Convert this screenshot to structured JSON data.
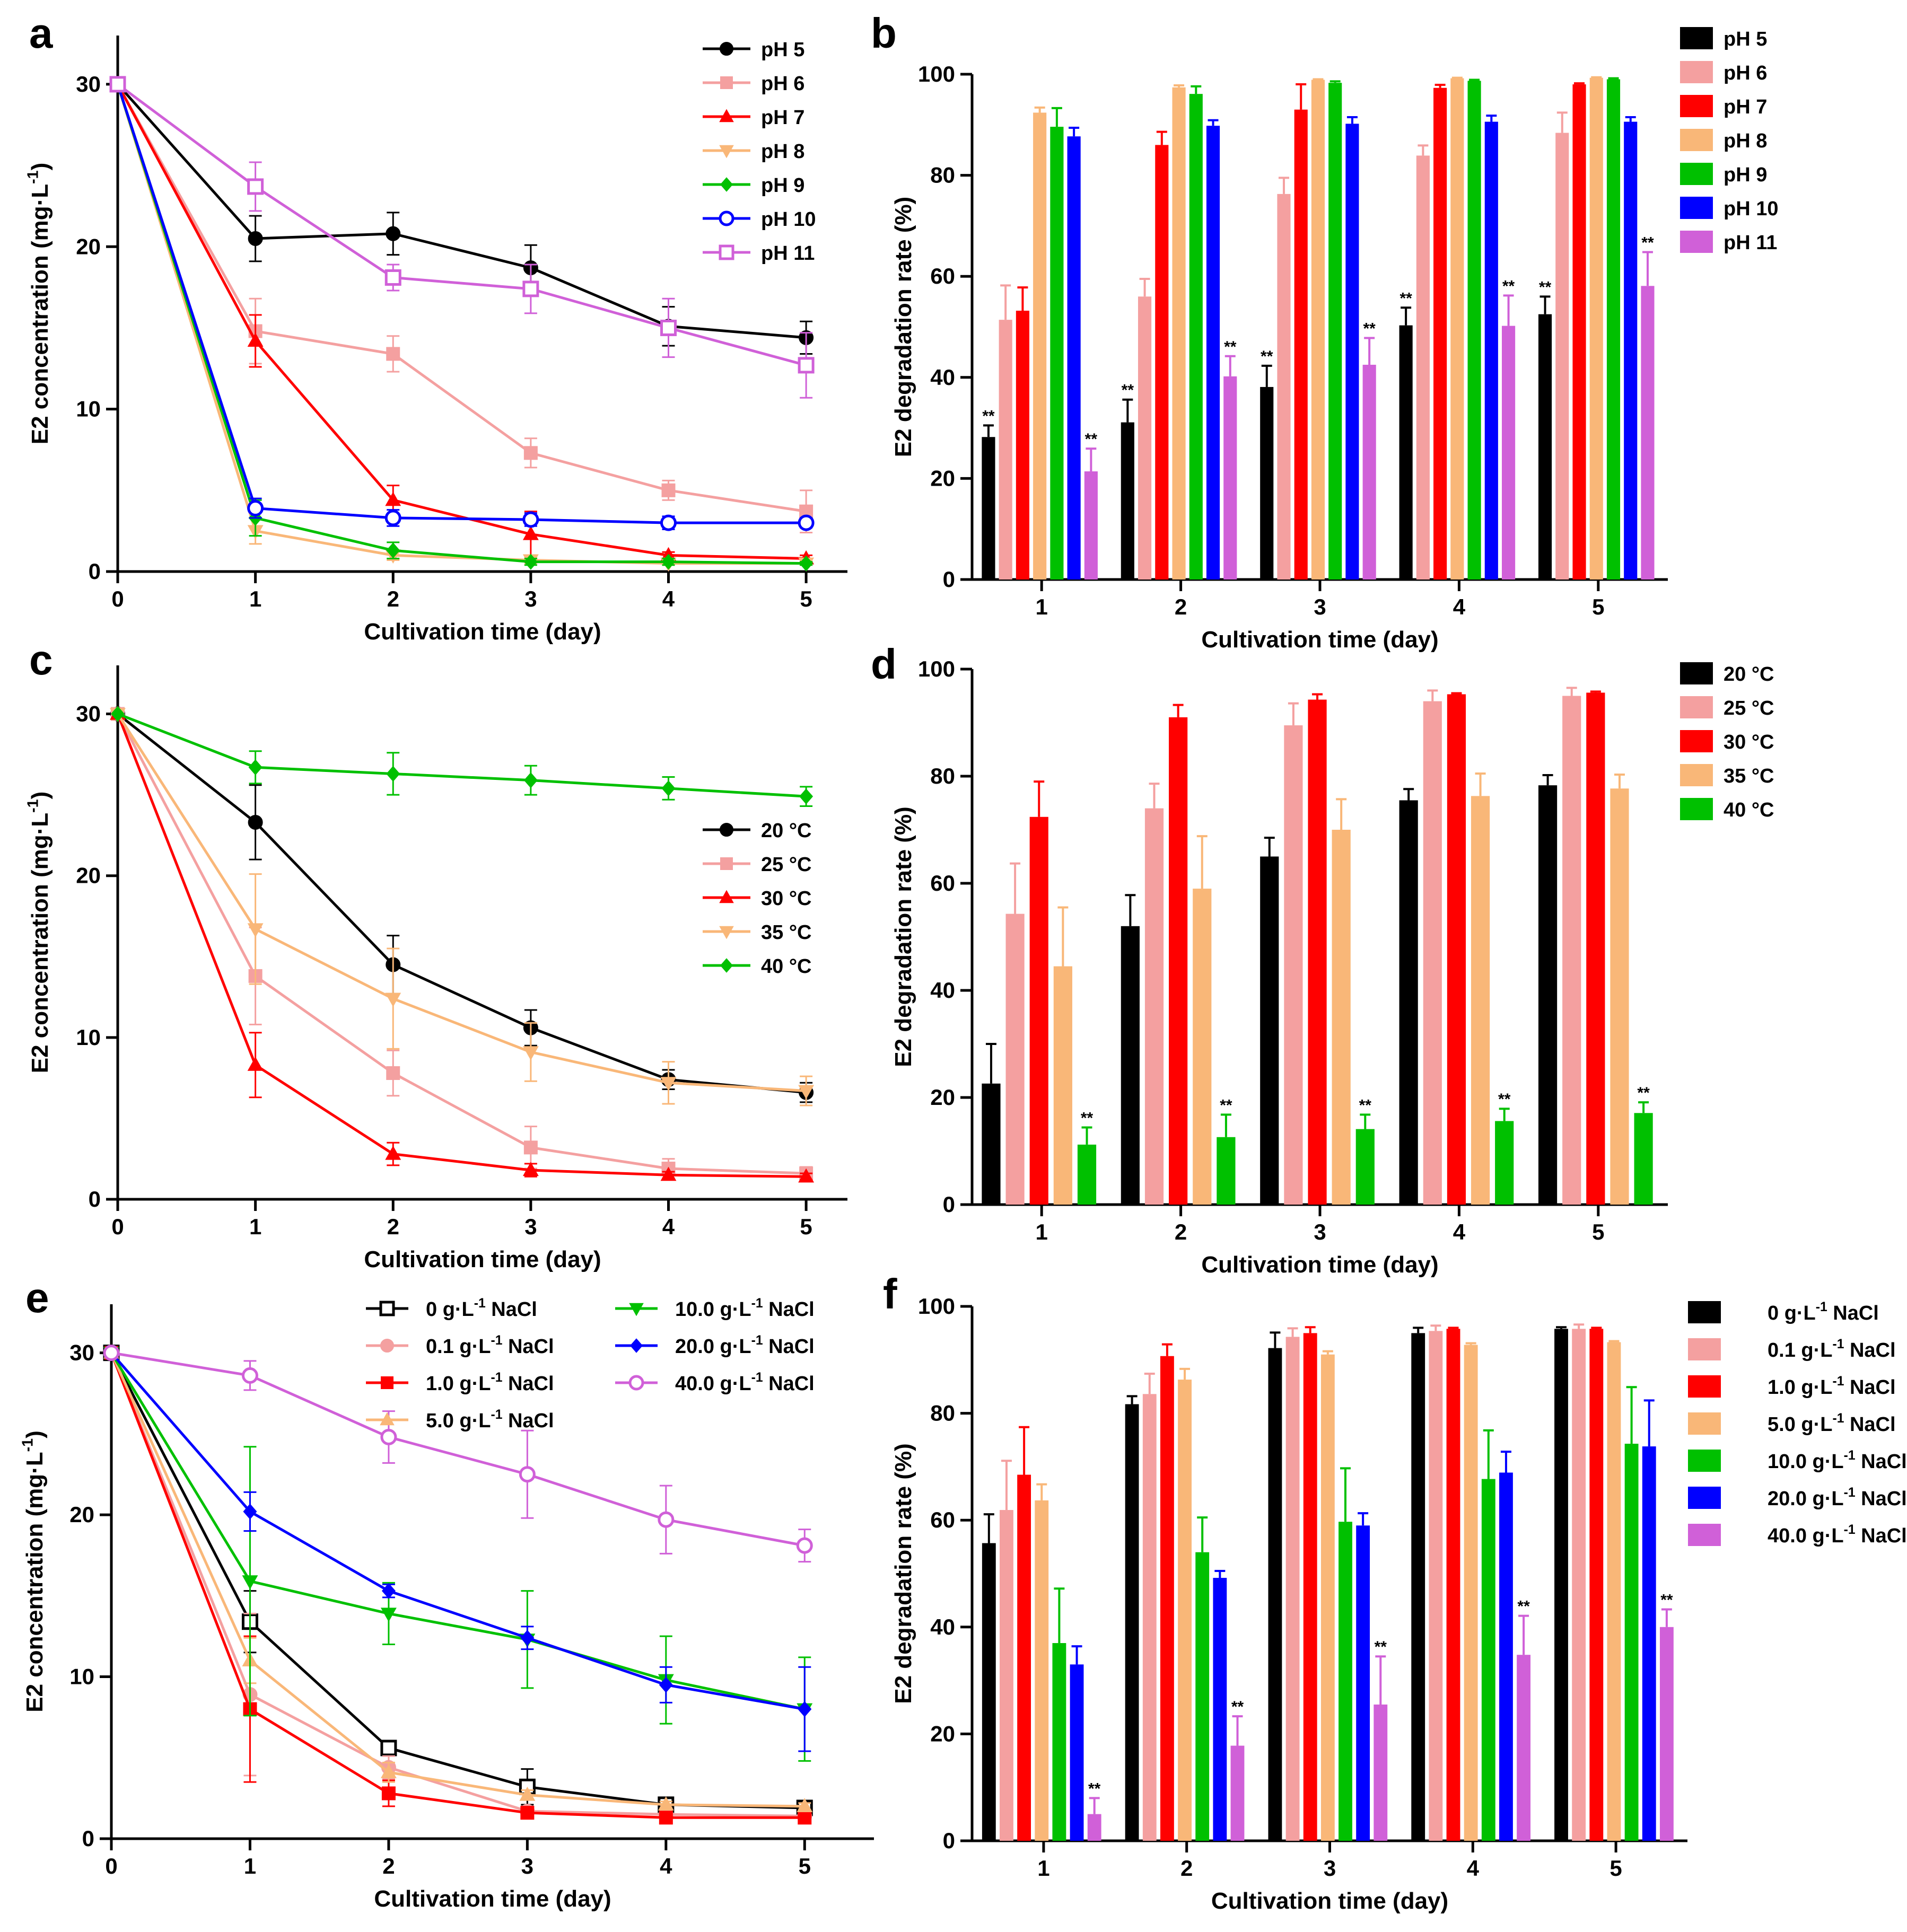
{
  "figure": {
    "colors": {
      "ph5": "#000000",
      "ph6": "#f4a0a0",
      "ph7": "#ff0000",
      "ph8": "#f9b778",
      "ph9": "#00c000",
      "ph10": "#0000ff",
      "ph11": "#d060d8",
      "axis": "#000000"
    }
  },
  "chart_data": [
    {
      "id": "a",
      "panel_label": "a",
      "type": "line",
      "xlabel": "Cultivation time (day)",
      "ylabel": "E2 concentration (mg·L",
      "ylabel_sup": "-1",
      "ylabel_end": ")",
      "xlim": [
        0,
        5.3
      ],
      "ylim": [
        0,
        33
      ],
      "xticks": [
        0,
        1,
        2,
        3,
        4,
        5
      ],
      "yticks": [
        0,
        10,
        20,
        30
      ],
      "x": [
        0,
        1,
        2,
        3,
        4,
        5
      ],
      "legend_position": "top-right",
      "series": [
        {
          "name": "pH 5",
          "color": "#000000",
          "marker": "circle",
          "values": [
            30,
            20.5,
            20.8,
            18.7,
            15.1,
            14.4
          ],
          "errors": [
            0,
            1.4,
            1.3,
            1.4,
            1.2,
            1.0
          ]
        },
        {
          "name": "pH 6",
          "color": "#f4a0a0",
          "marker": "square",
          "values": [
            30,
            14.8,
            13.4,
            7.3,
            5.0,
            3.7
          ],
          "errors": [
            0,
            2.0,
            1.1,
            0.9,
            0.6,
            1.3
          ]
        },
        {
          "name": "pH 7",
          "color": "#ff0000",
          "marker": "triangle-up",
          "values": [
            30,
            14.2,
            4.4,
            2.3,
            1.0,
            0.8
          ],
          "errors": [
            0,
            1.6,
            0.9,
            1.4,
            0.2,
            0.2
          ]
        },
        {
          "name": "pH 8",
          "color": "#f9b778",
          "marker": "triangle-down",
          "values": [
            30,
            2.5,
            1.0,
            0.7,
            0.5,
            0.5
          ],
          "errors": [
            0,
            0.8,
            0.3,
            0.2,
            0.1,
            0.1
          ]
        },
        {
          "name": "pH 9",
          "color": "#00c000",
          "marker": "diamond",
          "values": [
            30,
            3.3,
            1.3,
            0.6,
            0.6,
            0.5
          ],
          "errors": [
            0,
            1.1,
            0.5,
            0.2,
            0.2,
            0.1
          ]
        },
        {
          "name": "pH 10",
          "color": "#0000ff",
          "marker": "circle-open",
          "values": [
            30,
            3.9,
            3.3,
            3.2,
            3.0,
            3.0
          ],
          "errors": [
            0,
            0.6,
            0.5,
            0.4,
            0.4,
            0.3
          ]
        },
        {
          "name": "pH 11",
          "color": "#d060d8",
          "marker": "square-open",
          "values": [
            30,
            23.7,
            18.1,
            17.4,
            15.0,
            12.7
          ],
          "errors": [
            0,
            1.5,
            0.8,
            1.5,
            1.8,
            2.0
          ]
        }
      ]
    },
    {
      "id": "b",
      "panel_label": "b",
      "type": "bar",
      "xlabel": "Cultivation time (day)",
      "ylabel": "E2 degradation rate (%)",
      "ylim": [
        0,
        100
      ],
      "yticks": [
        0,
        20,
        40,
        60,
        80,
        100
      ],
      "categories": [
        "1",
        "2",
        "3",
        "4",
        "5"
      ],
      "legend_position": "top-right",
      "series": [
        {
          "name": "pH 5",
          "color": "#000000",
          "values": [
            28.2,
            31.1,
            38.1,
            50.3,
            52.5
          ],
          "errors": [
            2.3,
            4.5,
            4.2,
            3.5,
            3.5
          ],
          "sig": [
            "**",
            "**",
            "**",
            "**",
            "**"
          ]
        },
        {
          "name": "pH 6",
          "color": "#f4a0a0",
          "values": [
            51.4,
            56.0,
            76.3,
            83.9,
            88.4
          ],
          "errors": [
            6.8,
            3.5,
            3.2,
            2.0,
            4.0
          ],
          "sig": [
            "",
            "",
            "",
            "",
            ""
          ]
        },
        {
          "name": "pH 7",
          "color": "#ff0000",
          "values": [
            53.2,
            86.0,
            93.0,
            97.3,
            98.0
          ],
          "errors": [
            4.6,
            2.6,
            5.0,
            0.6,
            0.2
          ],
          "sig": [
            "",
            "",
            "",
            "",
            ""
          ]
        },
        {
          "name": "pH 8",
          "color": "#f9b778",
          "values": [
            92.4,
            97.4,
            98.9,
            99.2,
            99.3
          ],
          "errors": [
            1.0,
            0.4,
            0.1,
            0.1,
            0.1
          ],
          "sig": [
            "",
            "",
            "",
            "",
            ""
          ]
        },
        {
          "name": "pH 9",
          "color": "#00c000",
          "values": [
            89.6,
            96.1,
            98.3,
            98.7,
            99.0
          ],
          "errors": [
            3.7,
            1.5,
            0.3,
            0.2,
            0.2
          ],
          "sig": [
            "",
            "",
            "",
            "",
            ""
          ]
        },
        {
          "name": "pH 10",
          "color": "#0000ff",
          "values": [
            87.7,
            89.8,
            90.2,
            90.6,
            90.6
          ],
          "errors": [
            1.7,
            1.1,
            1.3,
            1.2,
            0.9
          ],
          "sig": [
            "",
            "",
            "",
            "",
            ""
          ]
        },
        {
          "name": "pH 11",
          "color": "#d060d8",
          "values": [
            21.4,
            40.2,
            42.5,
            50.2,
            58.1
          ],
          "errors": [
            4.5,
            4.0,
            5.3,
            6.0,
            6.7
          ],
          "sig": [
            "**",
            "**",
            "**",
            "**",
            "**"
          ]
        }
      ]
    },
    {
      "id": "c",
      "panel_label": "c",
      "type": "line",
      "xlabel": "Cultivation time (day)",
      "ylabel": "E2 concentration (mg·L",
      "ylabel_sup": "-1",
      "ylabel_end": ")",
      "xlim": [
        0,
        5.3
      ],
      "ylim": [
        0,
        33
      ],
      "xticks": [
        0,
        1,
        2,
        3,
        4,
        5
      ],
      "yticks": [
        0,
        10,
        20,
        30
      ],
      "x": [
        0,
        1,
        2,
        3,
        4,
        5
      ],
      "legend_position": "right-middle",
      "series": [
        {
          "name": "20 °C",
          "color": "#000000",
          "marker": "circle",
          "values": [
            30,
            23.3,
            14.5,
            10.6,
            7.4,
            6.6
          ],
          "errors": [
            0,
            2.3,
            1.8,
            1.1,
            0.6,
            0.6
          ]
        },
        {
          "name": "25 °C",
          "color": "#f4a0a0",
          "marker": "square",
          "values": [
            30,
            13.8,
            7.8,
            3.2,
            1.9,
            1.6
          ],
          "errors": [
            0,
            3.0,
            1.4,
            1.3,
            0.6,
            0.4
          ]
        },
        {
          "name": "30 °C",
          "color": "#ff0000",
          "marker": "triangle-up",
          "values": [
            30,
            8.3,
            2.8,
            1.8,
            1.5,
            1.4
          ],
          "errors": [
            0,
            2.0,
            0.7,
            0.4,
            0.2,
            0.2
          ]
        },
        {
          "name": "35 °C",
          "color": "#f9b778",
          "marker": "triangle-down",
          "values": [
            30,
            16.7,
            12.4,
            9.1,
            7.2,
            6.7
          ],
          "errors": [
            0,
            3.4,
            3.1,
            1.8,
            1.3,
            0.9
          ]
        },
        {
          "name": "40 °C",
          "color": "#00c000",
          "marker": "diamond",
          "values": [
            30,
            26.7,
            26.3,
            25.9,
            25.4,
            24.9
          ],
          "errors": [
            0,
            1.0,
            1.3,
            0.9,
            0.7,
            0.6
          ]
        }
      ]
    },
    {
      "id": "d",
      "panel_label": "d",
      "type": "bar",
      "xlabel": "Cultivation time (day)",
      "ylabel": "E2 degradation rate (%)",
      "ylim": [
        0,
        100
      ],
      "yticks": [
        0,
        20,
        40,
        60,
        80,
        100
      ],
      "categories": [
        "1",
        "2",
        "3",
        "4",
        "5"
      ],
      "legend_position": "top-right",
      "series": [
        {
          "name": "20 °C",
          "color": "#000000",
          "values": [
            22.6,
            52.0,
            65.0,
            75.5,
            78.3
          ],
          "errors": [
            7.4,
            5.8,
            3.5,
            2.1,
            1.9
          ],
          "sig": [
            "",
            "",
            "",
            "",
            ""
          ]
        },
        {
          "name": "25 °C",
          "color": "#f4a0a0",
          "values": [
            54.3,
            74.0,
            89.5,
            94.0,
            95.0
          ],
          "errors": [
            9.4,
            4.6,
            4.1,
            2.0,
            1.5
          ],
          "sig": [
            "",
            "",
            "",
            "",
            ""
          ]
        },
        {
          "name": "30 °C",
          "color": "#ff0000",
          "values": [
            72.4,
            91.0,
            94.3,
            95.3,
            95.6
          ],
          "errors": [
            6.6,
            2.3,
            1.0,
            0.2,
            0.2
          ],
          "sig": [
            "",
            "",
            "",
            "",
            ""
          ]
        },
        {
          "name": "35 °C",
          "color": "#f9b778",
          "values": [
            44.5,
            59.0,
            70.0,
            76.3,
            77.7
          ],
          "errors": [
            11.0,
            9.8,
            5.7,
            4.2,
            2.6
          ],
          "sig": [
            "",
            "",
            "",
            "",
            ""
          ]
        },
        {
          "name": "40 °C",
          "color": "#00c000",
          "values": [
            11.2,
            12.6,
            14.1,
            15.6,
            17.1
          ],
          "errors": [
            3.2,
            4.2,
            2.7,
            2.3,
            2.0
          ],
          "sig": [
            "**",
            "**",
            "**",
            "**",
            "**"
          ]
        }
      ]
    },
    {
      "id": "e",
      "panel_label": "e",
      "type": "line",
      "xlabel": "Cultivation time (day)",
      "ylabel": "E2 concentration (mg·L",
      "ylabel_sup": "-1",
      "ylabel_end": ")",
      "xlim": [
        0,
        5.5
      ],
      "ylim": [
        0,
        33
      ],
      "xticks": [
        0,
        1,
        2,
        3,
        4,
        5
      ],
      "yticks": [
        0,
        10,
        20,
        30
      ],
      "x": [
        0,
        1,
        2,
        3,
        4,
        5
      ],
      "legend_position": "top-right, two columns",
      "series": [
        {
          "name": "0 g·L",
          "name_sup": "-1",
          "name_end": " NaCl",
          "color": "#000000",
          "marker": "square-open",
          "values": [
            30,
            13.4,
            5.6,
            3.2,
            2.1,
            1.9
          ],
          "errors": [
            0,
            1.9,
            0.4,
            1.1,
            0.3,
            0.2
          ]
        },
        {
          "name": "0.1 g·L",
          "name_sup": "-1",
          "name_end": " NaCl",
          "color": "#f4a0a0",
          "marker": "circle",
          "values": [
            30,
            8.9,
            4.4,
            1.7,
            1.5,
            1.4
          ],
          "errors": [
            0,
            5.0,
            0.7,
            0.3,
            0.2,
            0.2
          ]
        },
        {
          "name": "1.0 g·L",
          "name_sup": "-1",
          "name_end": " NaCl",
          "color": "#ff0000",
          "marker": "square",
          "values": [
            30,
            8.0,
            2.8,
            1.6,
            1.3,
            1.3
          ],
          "errors": [
            0,
            4.5,
            0.8,
            0.3,
            0.2,
            0.2
          ]
        },
        {
          "name": "5.0 g·L",
          "name_sup": "-1",
          "name_end": " NaCl",
          "color": "#f9b778",
          "marker": "triangle-up",
          "values": [
            30,
            11.0,
            4.1,
            2.7,
            2.1,
            2.0
          ],
          "errors": [
            0,
            1.4,
            0.6,
            0.3,
            0.2,
            0.2
          ]
        },
        {
          "name": "10.0 g·L",
          "name_sup": "-1",
          "name_end": " NaCl",
          "color": "#00c000",
          "marker": "triangle-down",
          "values": [
            30,
            15.9,
            13.9,
            12.3,
            9.8,
            8.0
          ],
          "errors": [
            0,
            8.3,
            1.9,
            3.0,
            2.7,
            3.2
          ]
        },
        {
          "name": "20.0 g·L",
          "name_sup": "-1",
          "name_end": " NaCl",
          "color": "#0000ff",
          "marker": "diamond",
          "values": [
            30,
            20.2,
            15.3,
            12.4,
            9.5,
            8.0
          ],
          "errors": [
            0,
            1.2,
            0.4,
            0.7,
            1.1,
            2.6
          ]
        },
        {
          "name": "40.0 g·L",
          "name_sup": "-1",
          "name_end": " NaCl",
          "color": "#d060d8",
          "marker": "circle-open",
          "values": [
            30,
            28.6,
            24.8,
            22.5,
            19.7,
            18.1
          ],
          "errors": [
            0,
            0.9,
            1.6,
            2.7,
            2.1,
            1.0
          ]
        }
      ]
    },
    {
      "id": "f",
      "panel_label": "f",
      "type": "bar",
      "xlabel": "Cultivation time (day)",
      "ylabel": "E2 degradation rate (%)",
      "ylim": [
        0,
        100
      ],
      "yticks": [
        0,
        20,
        40,
        60,
        80,
        100
      ],
      "categories": [
        "1",
        "2",
        "3",
        "4",
        "5"
      ],
      "legend_position": "top-right",
      "series": [
        {
          "name": "0 g·L",
          "name_sup": "-1",
          "name_end": " NaCl",
          "color": "#000000",
          "values": [
            55.7,
            81.7,
            92.2,
            95.0,
            95.8
          ],
          "errors": [
            5.4,
            1.5,
            2.9,
            1.0,
            0.3
          ],
          "sig": [
            "",
            "",
            "",
            "",
            ""
          ]
        },
        {
          "name": "0.1 g·L",
          "name_sup": "-1",
          "name_end": " NaCl",
          "color": "#f4a0a0",
          "values": [
            61.9,
            83.6,
            94.3,
            95.4,
            95.8
          ],
          "errors": [
            9.2,
            3.8,
            1.6,
            1.0,
            0.8
          ],
          "sig": [
            "",
            "",
            "",
            "",
            ""
          ]
        },
        {
          "name": "1.0 g·L",
          "name_sup": "-1",
          "name_end": " NaCl",
          "color": "#ff0000",
          "values": [
            68.5,
            90.7,
            95.0,
            95.8,
            95.8
          ],
          "errors": [
            8.9,
            2.2,
            1.1,
            0.2,
            0.2
          ],
          "sig": [
            "",
            "",
            "",
            "",
            ""
          ]
        },
        {
          "name": "5.0 g·L",
          "name_sup": "-1",
          "name_end": " NaCl",
          "color": "#f9b778",
          "values": [
            63.7,
            86.3,
            91.0,
            92.8,
            93.3
          ],
          "errors": [
            3.0,
            2.0,
            0.6,
            0.3,
            0.2
          ],
          "sig": [
            "",
            "",
            "",
            "",
            ""
          ]
        },
        {
          "name": "10.0 g·L",
          "name_sup": "-1",
          "name_end": " NaCl",
          "color": "#00c000",
          "values": [
            37.0,
            54.0,
            59.7,
            67.7,
            74.3
          ],
          "errors": [
            10.2,
            6.5,
            10.0,
            9.1,
            10.6
          ],
          "sig": [
            "",
            "",
            "",
            "",
            ""
          ]
        },
        {
          "name": "20.0 g·L",
          "name_sup": "-1",
          "name_end": " NaCl",
          "color": "#0000ff",
          "values": [
            33.0,
            49.2,
            59.0,
            68.9,
            73.8
          ],
          "errors": [
            3.4,
            1.3,
            2.3,
            3.9,
            8.6
          ],
          "sig": [
            "",
            "",
            "",
            "",
            ""
          ]
        },
        {
          "name": "40.0 g·L",
          "name_sup": "-1",
          "name_end": " NaCl",
          "color": "#d060d8",
          "values": [
            5.0,
            17.8,
            25.5,
            34.8,
            40.0
          ],
          "errors": [
            3.0,
            5.5,
            9.0,
            7.3,
            3.3
          ],
          "sig": [
            "**",
            "**",
            "**",
            "**",
            "**"
          ]
        }
      ]
    }
  ]
}
